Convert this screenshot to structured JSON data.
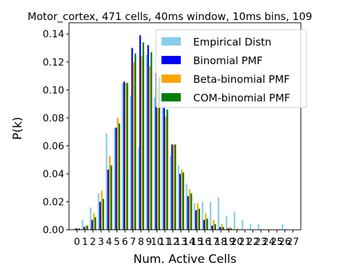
{
  "chart_data": {
    "type": "bar",
    "title": "Motor_cortex, 471 cells, 40ms window, 10ms bins, 109",
    "xlabel": "Num. Active Cells",
    "ylabel": "P(k)",
    "ylim": [
      0,
      0.148
    ],
    "xlim": [
      -1,
      28
    ],
    "y_ticks": [
      0.0,
      0.02,
      0.04,
      0.06,
      0.08,
      0.1,
      0.12,
      0.14
    ],
    "categories": [
      0,
      1,
      2,
      3,
      4,
      5,
      6,
      7,
      8,
      9,
      10,
      11,
      12,
      13,
      14,
      15,
      16,
      17,
      18,
      19,
      20,
      21,
      22,
      23,
      24,
      25,
      26,
      27
    ],
    "legend_position": "top-right",
    "series": [
      {
        "name": "Empirical Distn",
        "color": "#87ceeb",
        "values": [
          0.001,
          0.007,
          0.016,
          0.026,
          0.069,
          0.073,
          0.105,
          0.096,
          0.059,
          0.125,
          0.095,
          0.101,
          0.053,
          0.046,
          0.033,
          0.019,
          0.02,
          0.02,
          0.023,
          0.01,
          0.013,
          0.007,
          0.004,
          0.004,
          0,
          0,
          0.004,
          0
        ]
      },
      {
        "name": "Binomial PMF",
        "color": "#0000ff",
        "values": [
          0.001,
          0.002,
          0.007,
          0.02,
          0.043,
          0.073,
          0.106,
          0.13,
          0.139,
          0.132,
          0.112,
          0.088,
          0.061,
          0.04,
          0.024,
          0.014,
          0.007,
          0.003,
          0.002,
          0.001,
          0,
          0,
          0,
          0,
          0,
          0,
          0,
          0
        ]
      },
      {
        "name": "Beta-binomial PMF",
        "color": "#ffa500",
        "values": [
          0.001,
          0.003,
          0.012,
          0.028,
          0.053,
          0.08,
          0.105,
          0.12,
          0.124,
          0.117,
          0.101,
          0.081,
          0.061,
          0.043,
          0.029,
          0.019,
          0.012,
          0.007,
          0.004,
          0.002,
          0.001,
          0,
          0,
          0,
          0,
          0,
          0,
          0
        ]
      },
      {
        "name": "COM-binomial PMF",
        "color": "#008000",
        "values": [
          0.001,
          0.003,
          0.009,
          0.022,
          0.046,
          0.076,
          0.105,
          0.126,
          0.134,
          0.127,
          0.109,
          0.086,
          0.061,
          0.041,
          0.026,
          0.015,
          0.008,
          0.004,
          0.002,
          0.001,
          0,
          0,
          0,
          0,
          0,
          0,
          0,
          0
        ]
      }
    ]
  }
}
